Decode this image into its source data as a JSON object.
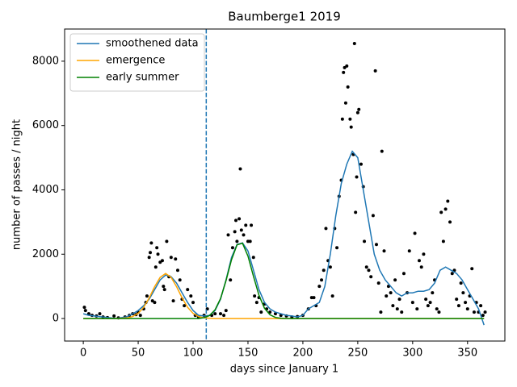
{
  "chart_data": {
    "type": "line",
    "title": "Baumberge1 2019",
    "x_label": "days since January 1",
    "y_label": "number of passes / night",
    "xlim": [
      -17,
      384
    ],
    "ylim": [
      -700,
      9000
    ],
    "xticks": [
      0,
      50,
      100,
      150,
      200,
      250,
      300,
      350
    ],
    "yticks": [
      0,
      2000,
      4000,
      6000,
      8000
    ],
    "legend": "upper left",
    "vline": 112,
    "vline_color": "#1f77b4",
    "x": [
      0,
      5,
      10,
      15,
      20,
      25,
      30,
      35,
      40,
      45,
      50,
      55,
      60,
      65,
      70,
      75,
      80,
      85,
      90,
      95,
      100,
      105,
      110,
      115,
      120,
      125,
      130,
      135,
      140,
      145,
      150,
      155,
      160,
      165,
      170,
      175,
      180,
      185,
      190,
      195,
      200,
      205,
      210,
      215,
      220,
      225,
      230,
      235,
      240,
      245,
      250,
      255,
      260,
      265,
      270,
      275,
      280,
      285,
      290,
      295,
      300,
      305,
      310,
      315,
      320,
      325,
      330,
      335,
      340,
      345,
      350,
      355,
      360,
      365
    ],
    "series": [
      {
        "name": "smoothened data",
        "color": "#1f77b4",
        "values": [
          150,
          100,
          80,
          60,
          40,
          20,
          0,
          30,
          60,
          150,
          250,
          400,
          600,
          900,
          1200,
          1350,
          1300,
          1100,
          800,
          500,
          250,
          100,
          80,
          100,
          250,
          600,
          1200,
          1900,
          2300,
          2350,
          2100,
          1500,
          900,
          500,
          300,
          200,
          150,
          100,
          80,
          50,
          100,
          300,
          400,
          500,
          1000,
          2000,
          3200,
          4200,
          4800,
          5200,
          5000,
          4000,
          3000,
          2000,
          1500,
          1200,
          1000,
          800,
          700,
          800,
          800,
          850,
          850,
          900,
          1100,
          1500,
          1600,
          1500,
          1400,
          1200,
          900,
          600,
          300,
          -200
        ]
      },
      {
        "name": "emergence",
        "color": "#ffa500",
        "values": [
          0,
          0,
          0,
          0,
          0,
          0,
          0,
          6,
          21,
          62,
          160,
          350,
          640,
          990,
          1280,
          1400,
          1280,
          990,
          640,
          350,
          160,
          62,
          21,
          6,
          0,
          0,
          0,
          0,
          0,
          0,
          0,
          0,
          0,
          0,
          0,
          0,
          0,
          0,
          0,
          0,
          0,
          0,
          0,
          0,
          0,
          0,
          0,
          0,
          0,
          0,
          0,
          0,
          0,
          0,
          0,
          0,
          0,
          0,
          0,
          0,
          0,
          0,
          0,
          0,
          0,
          0,
          0,
          0,
          0,
          0,
          0,
          0,
          0,
          0
        ]
      },
      {
        "name": "early summer",
        "color": "#008000",
        "values": [
          0,
          0,
          0,
          0,
          0,
          0,
          0,
          0,
          0,
          0,
          0,
          0,
          0,
          0,
          0,
          0,
          0,
          0,
          0,
          0,
          0,
          0,
          26,
          93,
          270,
          620,
          1180,
          1830,
          2290,
          2340,
          1940,
          1310,
          720,
          320,
          117,
          35,
          8,
          0,
          0,
          0,
          0,
          0,
          0,
          0,
          0,
          0,
          0,
          0,
          0,
          0,
          0,
          0,
          0,
          0,
          0,
          0,
          0,
          0,
          0,
          0,
          0,
          0,
          0,
          0,
          0,
          0,
          0,
          0,
          0,
          0,
          0,
          0,
          0,
          0
        ]
      }
    ],
    "points": {
      "color": "#000000",
      "x": [
        1,
        2,
        5,
        8,
        12,
        15,
        18,
        22,
        28,
        32,
        38,
        42,
        45,
        48,
        50,
        52,
        55,
        57,
        58,
        60,
        61,
        62,
        63,
        65,
        66,
        67,
        68,
        70,
        72,
        73,
        74,
        76,
        78,
        80,
        82,
        84,
        86,
        88,
        90,
        92,
        95,
        98,
        100,
        102,
        105,
        110,
        113,
        117,
        120,
        125,
        128,
        130,
        132,
        134,
        136,
        138,
        139,
        140,
        142,
        143,
        144,
        146,
        148,
        150,
        152,
        153,
        155,
        156,
        158,
        160,
        162,
        165,
        167,
        170,
        175,
        180,
        185,
        190,
        195,
        200,
        205,
        208,
        210,
        212,
        215,
        217,
        219,
        221,
        223,
        225,
        227,
        229,
        231,
        233,
        235,
        236,
        237,
        238,
        239,
        240,
        241,
        243,
        244,
        246,
        247,
        248,
        249,
        250,
        251,
        253,
        255,
        256,
        258,
        260,
        262,
        264,
        266,
        267,
        269,
        271,
        272,
        274,
        276,
        278,
        280,
        282,
        284,
        286,
        288,
        290,
        292,
        295,
        297,
        300,
        302,
        304,
        306,
        308,
        310,
        312,
        314,
        316,
        318,
        320,
        322,
        324,
        326,
        328,
        330,
        332,
        334,
        336,
        338,
        340,
        342,
        344,
        346,
        348,
        350,
        352,
        354,
        356,
        358,
        360,
        362,
        364,
        366
      ],
      "y": [
        350,
        250,
        150,
        100,
        80,
        150,
        50,
        30,
        80,
        20,
        50,
        100,
        150,
        120,
        200,
        100,
        300,
        500,
        700,
        1900,
        2050,
        2350,
        550,
        500,
        1600,
        2200,
        2000,
        1750,
        1800,
        1000,
        900,
        2400,
        1300,
        1900,
        550,
        1850,
        1500,
        1200,
        600,
        400,
        900,
        700,
        500,
        100,
        50,
        100,
        300,
        100,
        150,
        150,
        100,
        250,
        2600,
        1200,
        2200,
        2700,
        3050,
        2400,
        3100,
        4650,
        2750,
        2600,
        2900,
        2400,
        2400,
        2900,
        1900,
        700,
        500,
        650,
        200,
        450,
        300,
        200,
        150,
        100,
        80,
        50,
        60,
        100,
        300,
        650,
        650,
        400,
        1000,
        1200,
        1500,
        2800,
        1800,
        1600,
        700,
        2800,
        2200,
        3800,
        4300,
        6200,
        7650,
        7800,
        6700,
        7850,
        7200,
        6200,
        5950,
        5100,
        8550,
        3300,
        4400,
        6400,
        6500,
        4800,
        4100,
        2400,
        1600,
        1500,
        1300,
        3200,
        7700,
        2300,
        1100,
        200,
        5200,
        2100,
        700,
        1000,
        800,
        400,
        1200,
        300,
        600,
        200,
        1400,
        800,
        2100,
        500,
        2650,
        300,
        1800,
        1600,
        2000,
        600,
        400,
        500,
        800,
        1200,
        300,
        200,
        3300,
        2400,
        3400,
        3650,
        3000,
        1400,
        1500,
        600,
        400,
        1100,
        800,
        500,
        300,
        700,
        1550,
        200,
        500,
        200,
        400,
        100,
        200
      ]
    }
  }
}
